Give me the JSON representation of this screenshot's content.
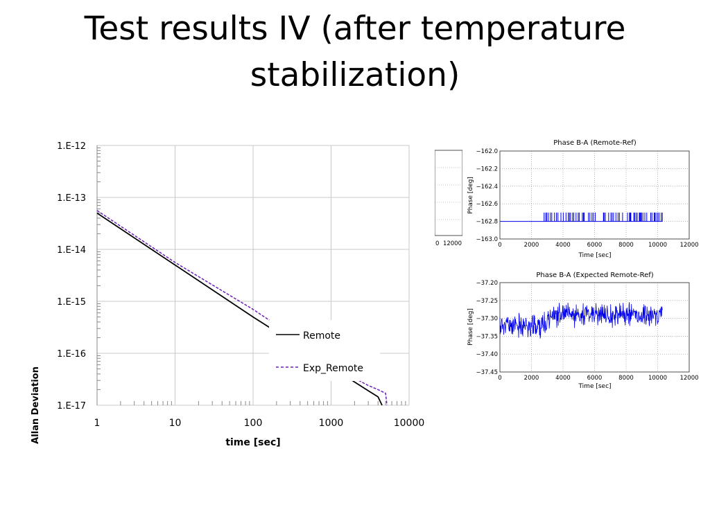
{
  "slide": {
    "title_line1": "Test results IV (after temperature",
    "title_line2": "stabilization)"
  },
  "chart_data": [
    {
      "type": "line",
      "scale": "log-log",
      "xlabel": "time [sec]",
      "ylabel": "Allan Deviation",
      "xlim": [
        1,
        10000
      ],
      "ylim": [
        1e-17,
        1e-12
      ],
      "x_tick_labels": [
        "1",
        "10",
        "100",
        "1000",
        "10000"
      ],
      "y_tick_labels": [
        "1.E-12",
        "1.E-13",
        "1.E-14",
        "1.E-15",
        "1.E-16",
        "1.E-17"
      ],
      "grid": true,
      "legend": "top-right",
      "series": [
        {
          "name": "Remote",
          "color": "#000000",
          "style": "solid",
          "x": [
            1,
            10,
            100,
            1000,
            2000,
            3000,
            4000,
            4500
          ],
          "y": [
            5e-14,
            5e-15,
            5e-16,
            5.5e-17,
            2.8e-17,
            1.9e-17,
            1.45e-17,
            1e-17
          ]
        },
        {
          "name": "Exp_Remote",
          "color": "#6a1fb8",
          "style": "dashed",
          "x": [
            1,
            10,
            100,
            1000,
            2000,
            3000,
            4000,
            5000,
            5200
          ],
          "y": [
            5.6e-14,
            5.6e-15,
            7e-16,
            7e-17,
            3.3e-17,
            2.4e-17,
            2e-17,
            1.7e-17,
            1e-17
          ]
        }
      ]
    },
    {
      "type": "line",
      "title": "Phase B-A (Remote-Ref)",
      "xlabel": "Time [sec]",
      "ylabel": "Phase [deg]",
      "xlim": [
        0,
        12000
      ],
      "ylim": [
        -163.0,
        -162.0
      ],
      "x_tick_labels": [
        "0",
        "2000",
        "4000",
        "6000",
        "8000",
        "10000",
        "12000"
      ],
      "y_tick_labels": [
        "−162.0",
        "−162.2",
        "−162.4",
        "−162.6",
        "−162.8",
        "−163.0"
      ],
      "grid": true,
      "series": [
        {
          "color": "#0000ee",
          "baseline": -162.8,
          "level_high": -162.7,
          "x_range": [
            0,
            10300
          ],
          "switching_from": 2800
        }
      ]
    },
    {
      "type": "line",
      "title": "Phase B-A (Expected Remote-Ref)",
      "xlabel": "Time [sec]",
      "ylabel": "Phase [deg]",
      "xlim": [
        0,
        12000
      ],
      "ylim": [
        -37.45,
        -37.2
      ],
      "x_tick_labels": [
        "0",
        "2000",
        "4000",
        "6000",
        "8000",
        "10000",
        "12000"
      ],
      "y_tick_labels": [
        "−37.20",
        "−37.25",
        "−37.30",
        "−37.35",
        "−37.40",
        "−37.45"
      ],
      "grid": true,
      "series": [
        {
          "color": "#0000ee",
          "x_range": [
            0,
            10300
          ],
          "mean_early": -37.32,
          "mean_late": -37.29,
          "noise_amplitude": 0.04
        }
      ]
    },
    {
      "type": "line",
      "note_partial": true,
      "x_tick_labels": [
        "0",
        "12000"
      ]
    }
  ]
}
